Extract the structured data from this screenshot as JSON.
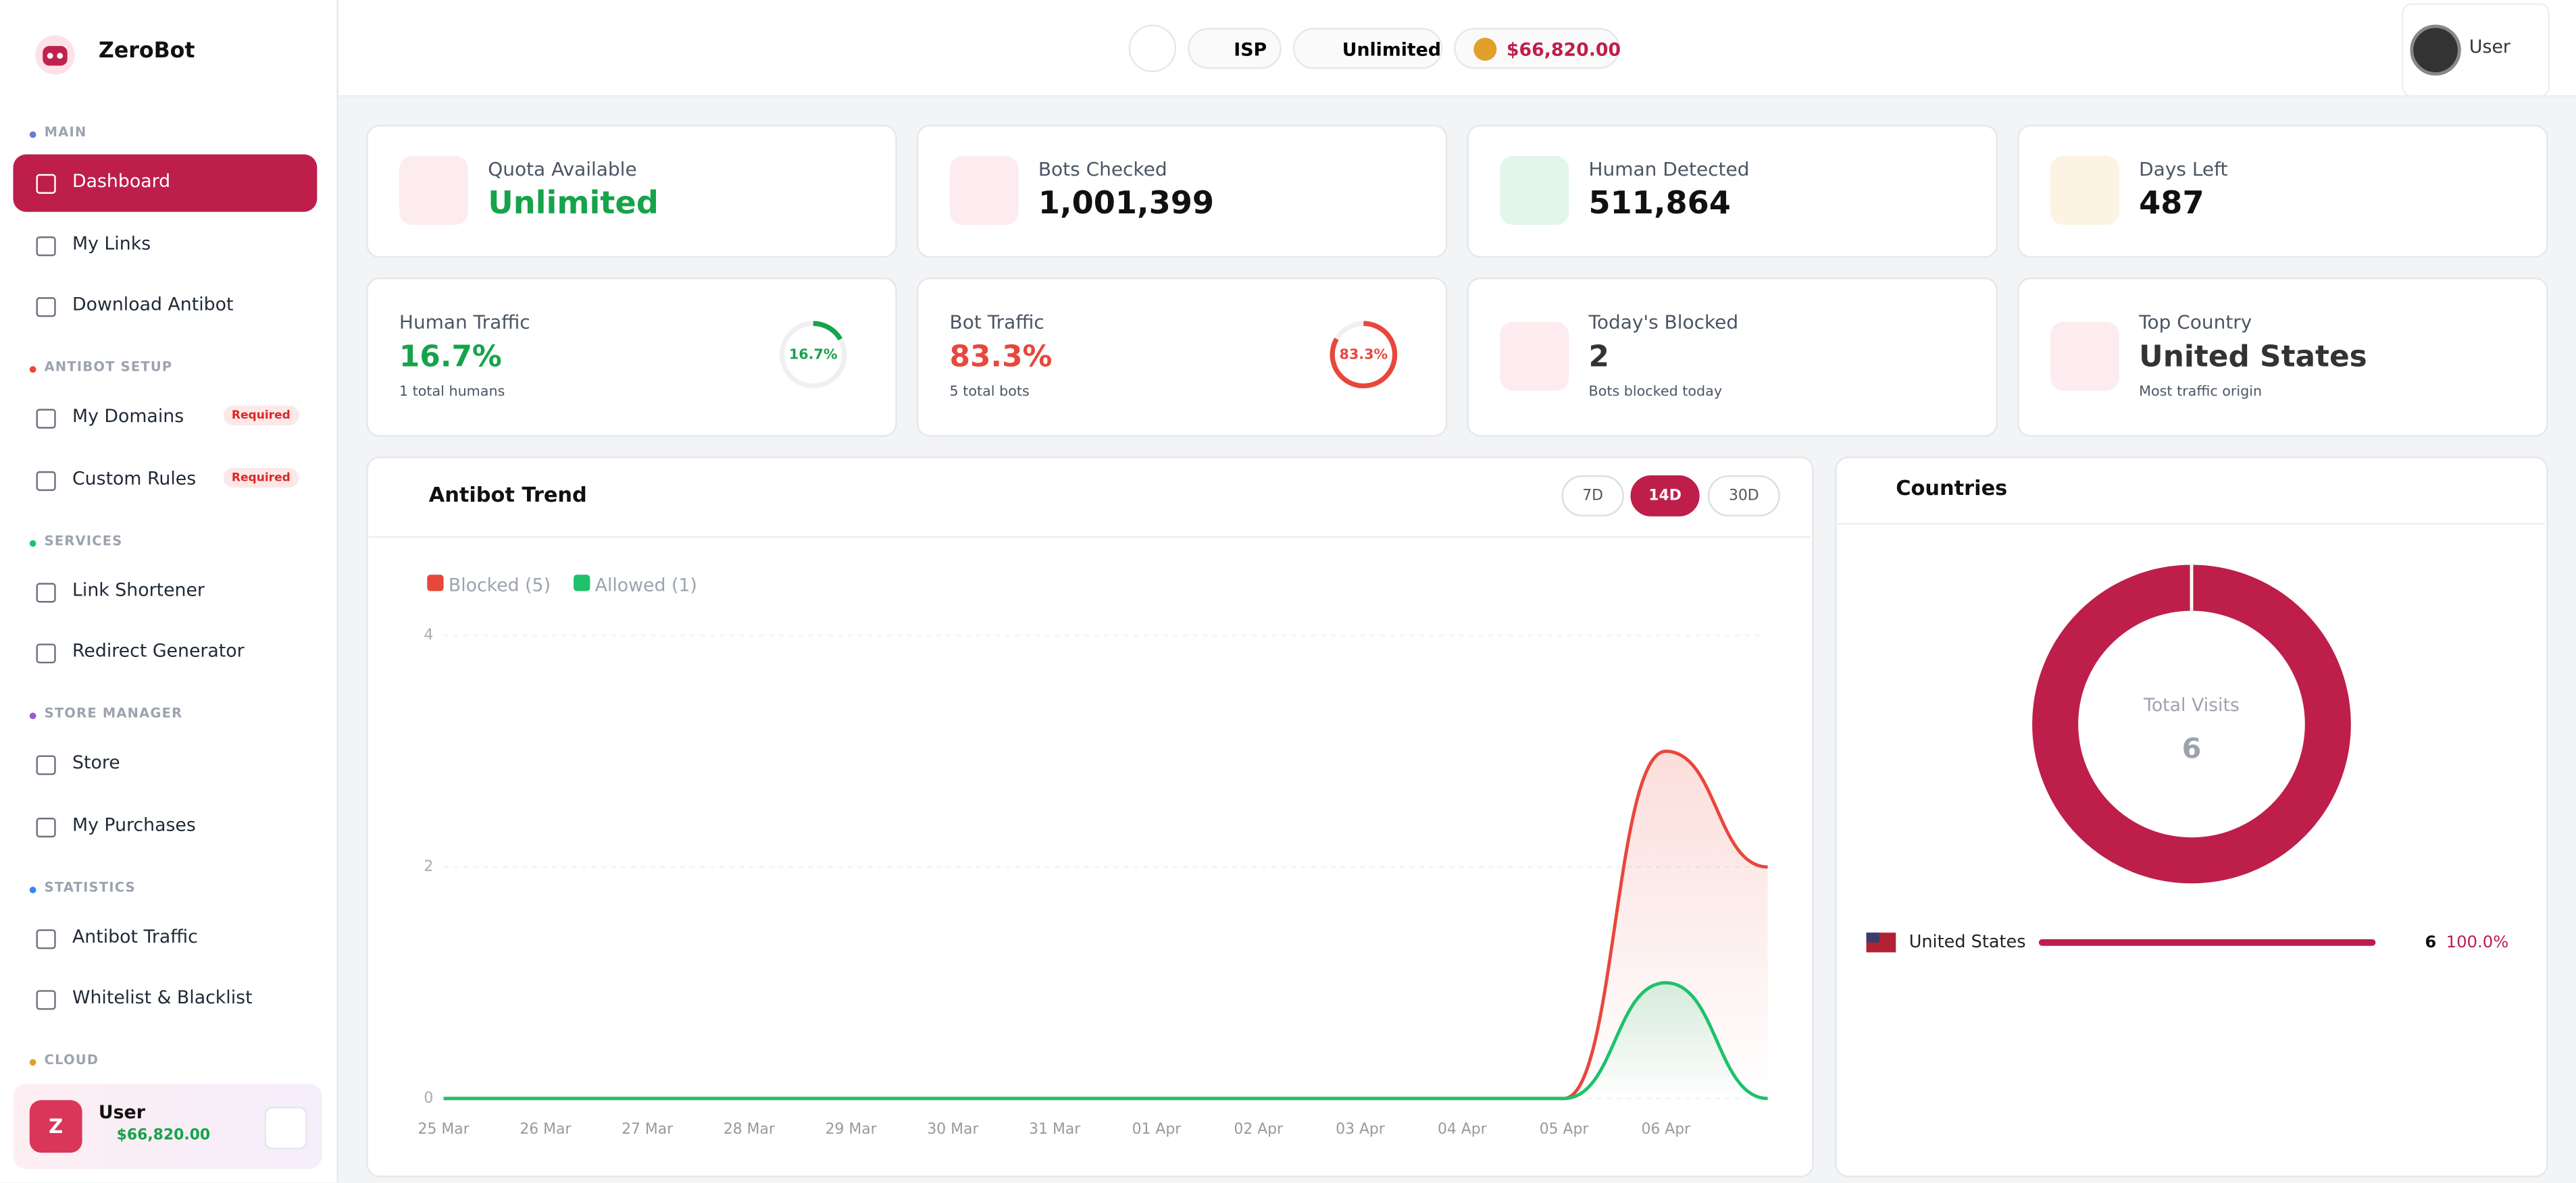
{
  "sidebar": {
    "brand": "ZeroBot",
    "sections": [
      {
        "title": "MAIN",
        "items": [
          {
            "label": "Dashboard",
            "active": true
          },
          {
            "label": "My Links"
          },
          {
            "label": "Download Antibot"
          }
        ]
      },
      {
        "title": "ANTIBOT SETUP",
        "items": [
          {
            "label": "My Domains",
            "badge": "Required"
          },
          {
            "label": "Custom Rules",
            "badge": "Required"
          }
        ]
      },
      {
        "title": "SERVICES",
        "items": [
          {
            "label": "Link Shortener"
          },
          {
            "label": "Redirect Generator"
          }
        ]
      },
      {
        "title": "STORE MANAGER",
        "items": [
          {
            "label": "Store"
          },
          {
            "label": "My Purchases"
          }
        ]
      },
      {
        "title": "STATISTICS",
        "items": [
          {
            "label": "Antibot Traffic"
          },
          {
            "label": "Whitelist & Blacklist"
          }
        ]
      },
      {
        "title": "CLOUD",
        "items": []
      }
    ],
    "user": {
      "avatar": "Z",
      "name": "User",
      "balance": "$66,820.00"
    }
  },
  "topbar": {
    "isp": "ISP",
    "plan": "Unlimited",
    "balance": "$66,820.00",
    "user": "User"
  },
  "stats": [
    {
      "label": "Quota Available",
      "value": "Unlimited"
    },
    {
      "label": "Bots Checked",
      "value": "1,001,399"
    },
    {
      "label": "Human Detected",
      "value": "511,864"
    },
    {
      "label": "Days Left",
      "value": 487
    }
  ],
  "traffic": [
    {
      "label": "Human Traffic",
      "value": {
        "value": 16.7,
        "label": "16.7%"
      },
      "note": "1 total humans",
      "color": "#16a34a"
    },
    {
      "label": "Bot Traffic",
      "value": {
        "value": 83.3,
        "label": "83.3%"
      },
      "note": "5 total bots",
      "color": "#e8473c"
    },
    {
      "label": "Today's Blocked",
      "value": 2,
      "note": "Bots blocked today"
    },
    {
      "label": "Top Country",
      "value": "United States",
      "note": "Most traffic origin"
    }
  ],
  "chart_data": [
    {
      "type": "line",
      "title": "Antibot Trend",
      "ranges": [
        "7D",
        "14D",
        "30D"
      ],
      "active_range": 1,
      "categories": [
        "25 Mar",
        "26 Mar",
        "27 Mar",
        "28 Mar",
        "29 Mar",
        "30 Mar",
        "31 Mar",
        "01 Apr",
        "02 Apr",
        "03 Apr",
        "04 Apr",
        "05 Apr",
        "06 Apr",
        null
      ],
      "series": [
        {
          "name": "Blocked (5)",
          "color": "#e8473c",
          "values": [
            0,
            0,
            0,
            0,
            0,
            0,
            0,
            0,
            0,
            0,
            0,
            0,
            3,
            2
          ]
        },
        {
          "name": "Allowed (1)",
          "color": "#1fc16b",
          "values": [
            0,
            0,
            0,
            0,
            0,
            0,
            0,
            0,
            0,
            0,
            0,
            0,
            1,
            0
          ]
        }
      ],
      "ylim": [
        0,
        4
      ],
      "yticks": [
        0,
        2,
        4
      ],
      "grid": true,
      "legend": "top-left"
    },
    {
      "type": "donut",
      "title": "Countries",
      "center_label": "Total Visits",
      "total": 6,
      "categories": [
        "United States"
      ],
      "values": [
        6
      ],
      "percent": [
        {
          "value": 100.0,
          "label": "100.0%"
        }
      ],
      "color": "#be1e4a"
    }
  ]
}
